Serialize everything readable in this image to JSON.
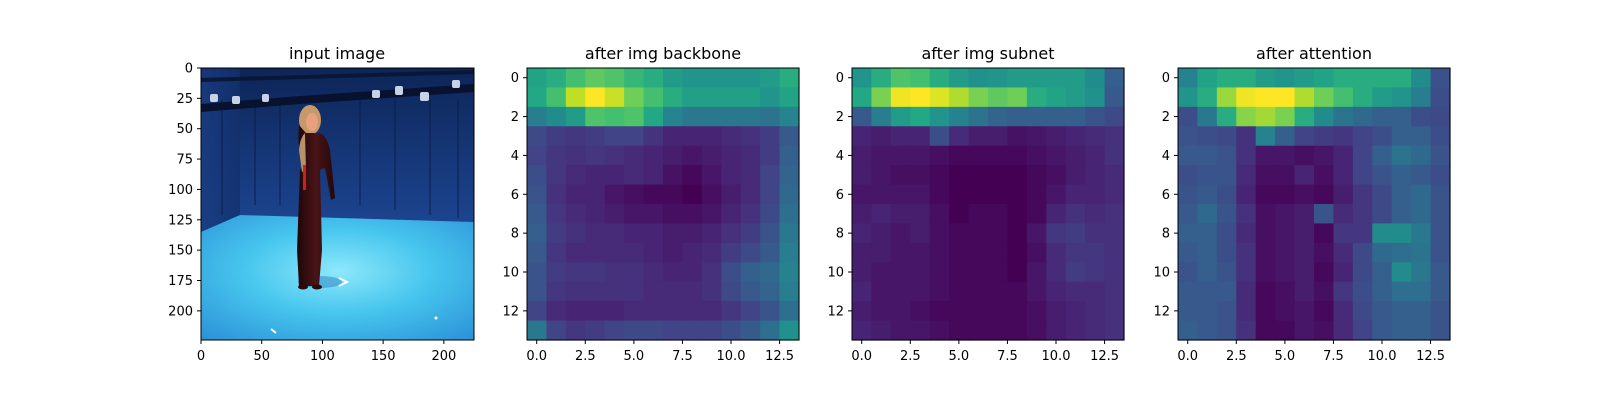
{
  "chart_data": [
    {
      "type": "image",
      "title": "input image",
      "content": "photo-woman-standing-in-blue-capture-studio",
      "xlim": [
        0,
        224
      ],
      "ylim": [
        224,
        0
      ],
      "xticks": [
        0,
        50,
        100,
        150,
        200
      ],
      "yticks": [
        0,
        25,
        50,
        75,
        100,
        125,
        150,
        175,
        200
      ],
      "colors": {
        "backdrop": "#1a3f86",
        "floor": "#3fc4ea",
        "dress": "#3a1014",
        "hair": "#c6986a",
        "skin": "#e8a080"
      }
    },
    {
      "type": "heatmap",
      "title": "after img backbone",
      "colormap": "viridis",
      "xticks": [
        0.0,
        2.5,
        5.0,
        7.5,
        10.0,
        12.5
      ],
      "yticks": [
        0,
        2,
        4,
        6,
        8,
        10,
        12
      ],
      "values": [
        [
          0.58,
          0.62,
          0.7,
          0.75,
          0.72,
          0.66,
          0.62,
          0.55,
          0.52,
          0.52,
          0.52,
          0.52,
          0.55,
          0.62
        ],
        [
          0.6,
          0.7,
          0.9,
          1.0,
          0.92,
          0.78,
          0.7,
          0.62,
          0.56,
          0.56,
          0.56,
          0.56,
          0.52,
          0.58
        ],
        [
          0.42,
          0.48,
          0.55,
          0.72,
          0.7,
          0.72,
          0.6,
          0.45,
          0.4,
          0.4,
          0.4,
          0.4,
          0.38,
          0.45
        ],
        [
          0.22,
          0.18,
          0.16,
          0.18,
          0.2,
          0.2,
          0.15,
          0.1,
          0.1,
          0.1,
          0.12,
          0.14,
          0.18,
          0.28
        ],
        [
          0.2,
          0.16,
          0.14,
          0.16,
          0.14,
          0.12,
          0.1,
          0.08,
          0.06,
          0.08,
          0.1,
          0.12,
          0.18,
          0.3
        ],
        [
          0.24,
          0.16,
          0.12,
          0.1,
          0.1,
          0.12,
          0.1,
          0.05,
          0.02,
          0.06,
          0.1,
          0.12,
          0.2,
          0.32
        ],
        [
          0.26,
          0.14,
          0.1,
          0.1,
          0.06,
          0.04,
          0.02,
          0.02,
          0.0,
          0.04,
          0.08,
          0.12,
          0.2,
          0.34
        ],
        [
          0.28,
          0.16,
          0.12,
          0.1,
          0.08,
          0.06,
          0.06,
          0.04,
          0.04,
          0.06,
          0.1,
          0.14,
          0.22,
          0.36
        ],
        [
          0.3,
          0.18,
          0.14,
          0.12,
          0.12,
          0.1,
          0.1,
          0.08,
          0.08,
          0.1,
          0.14,
          0.18,
          0.26,
          0.4
        ],
        [
          0.28,
          0.16,
          0.12,
          0.12,
          0.12,
          0.12,
          0.1,
          0.08,
          0.1,
          0.12,
          0.18,
          0.22,
          0.28,
          0.42
        ],
        [
          0.26,
          0.18,
          0.16,
          0.16,
          0.14,
          0.14,
          0.12,
          0.1,
          0.1,
          0.14,
          0.24,
          0.3,
          0.34,
          0.44
        ],
        [
          0.26,
          0.16,
          0.14,
          0.14,
          0.14,
          0.14,
          0.12,
          0.12,
          0.12,
          0.14,
          0.22,
          0.28,
          0.32,
          0.42
        ],
        [
          0.2,
          0.12,
          0.1,
          0.1,
          0.1,
          0.12,
          0.12,
          0.12,
          0.12,
          0.12,
          0.16,
          0.2,
          0.26,
          0.36
        ],
        [
          0.4,
          0.2,
          0.16,
          0.18,
          0.2,
          0.22,
          0.22,
          0.2,
          0.2,
          0.2,
          0.24,
          0.28,
          0.36,
          0.5
        ]
      ]
    },
    {
      "type": "heatmap",
      "title": "after img subnet",
      "colormap": "viridis",
      "xticks": [
        0.0,
        2.5,
        5.0,
        7.5,
        10.0,
        12.5
      ],
      "yticks": [
        0,
        2,
        4,
        6,
        8,
        10,
        12
      ],
      "values": [
        [
          0.52,
          0.62,
          0.72,
          0.7,
          0.62,
          0.55,
          0.5,
          0.52,
          0.55,
          0.55,
          0.55,
          0.55,
          0.48,
          0.3
        ],
        [
          0.6,
          0.8,
          0.98,
          1.0,
          0.95,
          0.88,
          0.8,
          0.75,
          0.78,
          0.62,
          0.58,
          0.55,
          0.5,
          0.28
        ],
        [
          0.28,
          0.42,
          0.55,
          0.6,
          0.52,
          0.44,
          0.38,
          0.32,
          0.3,
          0.3,
          0.3,
          0.3,
          0.26,
          0.22
        ],
        [
          0.1,
          0.08,
          0.1,
          0.1,
          0.24,
          0.12,
          0.08,
          0.08,
          0.05,
          0.06,
          0.08,
          0.1,
          0.12,
          0.14
        ],
        [
          0.08,
          0.06,
          0.06,
          0.06,
          0.04,
          0.02,
          0.02,
          0.02,
          0.02,
          0.04,
          0.06,
          0.08,
          0.1,
          0.14
        ],
        [
          0.08,
          0.06,
          0.04,
          0.04,
          0.02,
          0.0,
          0.0,
          0.0,
          0.0,
          0.02,
          0.04,
          0.08,
          0.1,
          0.12
        ],
        [
          0.06,
          0.06,
          0.06,
          0.06,
          0.02,
          0.0,
          0.0,
          0.0,
          0.0,
          0.02,
          0.06,
          0.1,
          0.1,
          0.12
        ],
        [
          0.08,
          0.1,
          0.08,
          0.08,
          0.04,
          0.0,
          0.02,
          0.02,
          0.0,
          0.02,
          0.1,
          0.14,
          0.12,
          0.14
        ],
        [
          0.1,
          0.08,
          0.06,
          0.08,
          0.04,
          0.02,
          0.02,
          0.02,
          0.0,
          0.06,
          0.16,
          0.18,
          0.14,
          0.14
        ],
        [
          0.08,
          0.08,
          0.06,
          0.06,
          0.04,
          0.02,
          0.02,
          0.02,
          0.0,
          0.04,
          0.12,
          0.16,
          0.16,
          0.14
        ],
        [
          0.08,
          0.06,
          0.06,
          0.06,
          0.04,
          0.02,
          0.02,
          0.02,
          0.0,
          0.06,
          0.12,
          0.18,
          0.16,
          0.14
        ],
        [
          0.1,
          0.06,
          0.06,
          0.06,
          0.04,
          0.02,
          0.02,
          0.02,
          0.02,
          0.06,
          0.1,
          0.12,
          0.12,
          0.14
        ],
        [
          0.08,
          0.06,
          0.06,
          0.04,
          0.02,
          0.02,
          0.02,
          0.02,
          0.02,
          0.04,
          0.08,
          0.1,
          0.12,
          0.14
        ],
        [
          0.1,
          0.08,
          0.06,
          0.06,
          0.04,
          0.02,
          0.02,
          0.02,
          0.02,
          0.04,
          0.08,
          0.1,
          0.12,
          0.14
        ]
      ]
    },
    {
      "type": "heatmap",
      "title": "after attention",
      "colormap": "viridis",
      "xticks": [
        0.0,
        2.5,
        5.0,
        7.5,
        10.0,
        12.5
      ],
      "yticks": [
        0,
        2,
        4,
        6,
        8,
        10,
        12
      ],
      "values": [
        [
          0.44,
          0.58,
          0.62,
          0.62,
          0.55,
          0.52,
          0.55,
          0.58,
          0.62,
          0.62,
          0.62,
          0.62,
          0.48,
          0.25
        ],
        [
          0.52,
          0.62,
          0.85,
          0.98,
          1.0,
          1.0,
          0.88,
          0.78,
          0.7,
          0.62,
          0.55,
          0.52,
          0.42,
          0.24
        ],
        [
          0.24,
          0.4,
          0.62,
          0.82,
          0.86,
          0.8,
          0.62,
          0.48,
          0.38,
          0.34,
          0.3,
          0.3,
          0.24,
          0.22
        ],
        [
          0.26,
          0.24,
          0.22,
          0.14,
          0.44,
          0.3,
          0.2,
          0.18,
          0.16,
          0.2,
          0.24,
          0.3,
          0.3,
          0.24
        ],
        [
          0.28,
          0.28,
          0.26,
          0.14,
          0.06,
          0.06,
          0.04,
          0.06,
          0.1,
          0.2,
          0.3,
          0.38,
          0.34,
          0.26
        ],
        [
          0.24,
          0.26,
          0.26,
          0.12,
          0.04,
          0.04,
          0.1,
          0.04,
          0.1,
          0.2,
          0.26,
          0.3,
          0.28,
          0.24
        ],
        [
          0.26,
          0.28,
          0.24,
          0.1,
          0.02,
          0.02,
          0.04,
          0.02,
          0.08,
          0.16,
          0.22,
          0.3,
          0.34,
          0.26
        ],
        [
          0.28,
          0.34,
          0.26,
          0.14,
          0.04,
          0.06,
          0.08,
          0.26,
          0.12,
          0.16,
          0.22,
          0.3,
          0.34,
          0.26
        ],
        [
          0.3,
          0.3,
          0.24,
          0.12,
          0.04,
          0.06,
          0.08,
          0.02,
          0.16,
          0.16,
          0.48,
          0.48,
          0.4,
          0.26
        ],
        [
          0.28,
          0.3,
          0.24,
          0.14,
          0.04,
          0.06,
          0.08,
          0.04,
          0.12,
          0.22,
          0.34,
          0.36,
          0.38,
          0.26
        ],
        [
          0.26,
          0.3,
          0.26,
          0.14,
          0.04,
          0.06,
          0.08,
          0.02,
          0.1,
          0.22,
          0.3,
          0.48,
          0.4,
          0.28
        ],
        [
          0.28,
          0.28,
          0.28,
          0.12,
          0.02,
          0.04,
          0.08,
          0.04,
          0.16,
          0.24,
          0.3,
          0.36,
          0.36,
          0.28
        ],
        [
          0.28,
          0.28,
          0.26,
          0.12,
          0.02,
          0.04,
          0.06,
          0.02,
          0.12,
          0.22,
          0.28,
          0.3,
          0.3,
          0.26
        ],
        [
          0.3,
          0.28,
          0.26,
          0.14,
          0.02,
          0.02,
          0.06,
          0.04,
          0.12,
          0.2,
          0.28,
          0.3,
          0.3,
          0.26
        ]
      ]
    }
  ]
}
